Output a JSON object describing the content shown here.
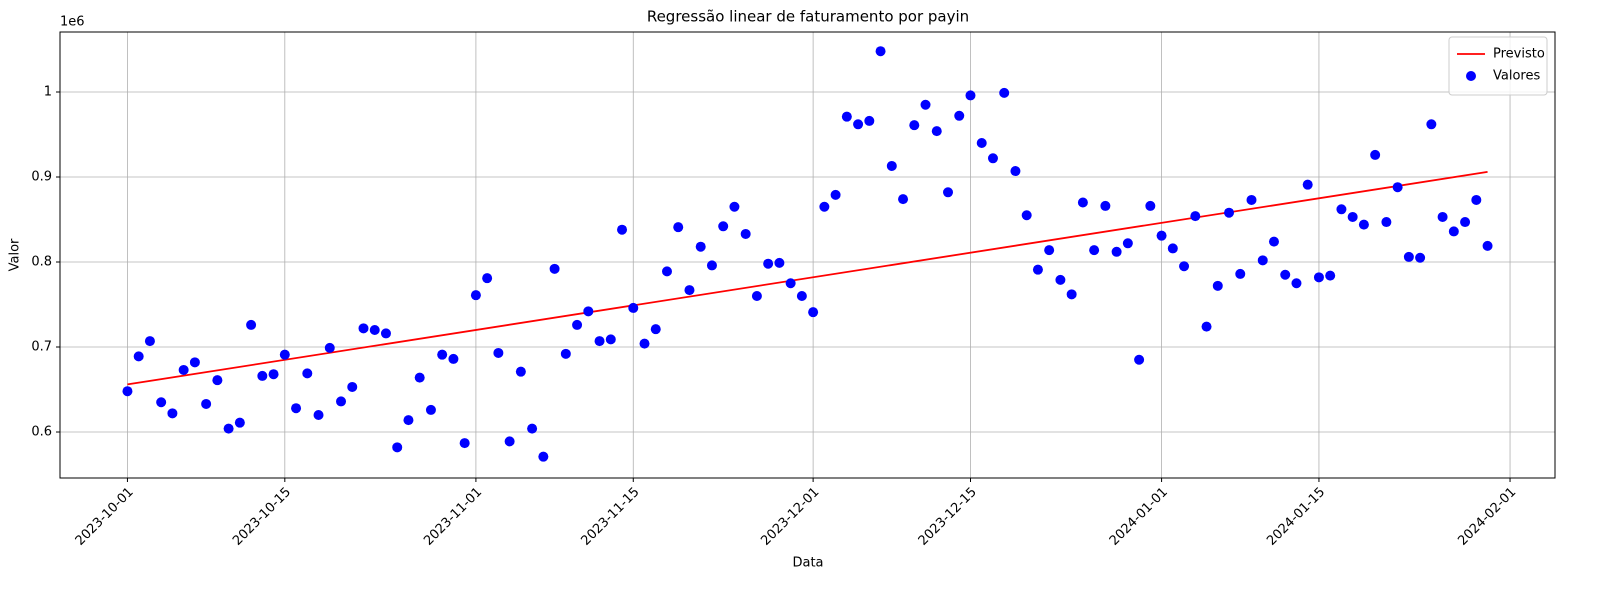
{
  "chart_data": {
    "type": "scatter",
    "title": "Regressão linear de faturamento por payin",
    "x_label": "Data",
    "y_label": "Valor",
    "y_offset_label": "1e6",
    "xlim": [
      "2023-09-25",
      "2024-02-05"
    ],
    "ylim": [
      0.5459,
      1.0706
    ],
    "xticks": [
      "2023-10-01",
      "2023-10-15",
      "2023-11-01",
      "2023-11-15",
      "2023-12-01",
      "2023-12-15",
      "2024-01-01",
      "2024-01-15",
      "2024-02-01"
    ],
    "yticks": [
      0.6,
      0.7,
      0.8,
      0.9,
      1.0
    ],
    "grid": true,
    "legend": "upper right",
    "series": [
      {
        "name": "Previsto",
        "type": "line",
        "color": "red",
        "x": [
          "2023-10-01",
          "2024-01-30"
        ],
        "values": [
          0.656,
          0.906
        ]
      },
      {
        "name": "Valores",
        "type": "scatter",
        "color": "blue",
        "x": [
          "2023-10-01",
          "2023-10-02",
          "2023-10-03",
          "2023-10-04",
          "2023-10-05",
          "2023-10-06",
          "2023-10-07",
          "2023-10-08",
          "2023-10-09",
          "2023-10-10",
          "2023-10-11",
          "2023-10-12",
          "2023-10-13",
          "2023-10-14",
          "2023-10-15",
          "2023-10-16",
          "2023-10-17",
          "2023-10-18",
          "2023-10-19",
          "2023-10-20",
          "2023-10-21",
          "2023-10-22",
          "2023-10-23",
          "2023-10-24",
          "2023-10-25",
          "2023-10-26",
          "2023-10-27",
          "2023-10-28",
          "2023-10-29",
          "2023-10-30",
          "2023-10-31",
          "2023-11-01",
          "2023-11-02",
          "2023-11-03",
          "2023-11-04",
          "2023-11-05",
          "2023-11-06",
          "2023-11-07",
          "2023-11-08",
          "2023-11-09",
          "2023-11-10",
          "2023-11-11",
          "2023-11-12",
          "2023-11-13",
          "2023-11-14",
          "2023-11-15",
          "2023-11-16",
          "2023-11-17",
          "2023-11-18",
          "2023-11-19",
          "2023-11-20",
          "2023-11-21",
          "2023-11-22",
          "2023-11-23",
          "2023-11-24",
          "2023-11-25",
          "2023-11-26",
          "2023-11-27",
          "2023-11-28",
          "2023-11-29",
          "2023-11-30",
          "2023-12-01",
          "2023-12-02",
          "2023-12-03",
          "2023-12-04",
          "2023-12-05",
          "2023-12-06",
          "2023-12-07",
          "2023-12-08",
          "2023-12-09",
          "2023-12-10",
          "2023-12-11",
          "2023-12-12",
          "2023-12-13",
          "2023-12-14",
          "2023-12-15",
          "2023-12-16",
          "2023-12-17",
          "2023-12-18",
          "2023-12-19",
          "2023-12-20",
          "2023-12-21",
          "2023-12-22",
          "2023-12-23",
          "2023-12-24",
          "2023-12-25",
          "2023-12-26",
          "2023-12-27",
          "2023-12-28",
          "2023-12-29",
          "2023-12-30",
          "2023-12-31",
          "2024-01-01",
          "2024-01-02",
          "2024-01-03",
          "2024-01-04",
          "2024-01-05",
          "2024-01-06",
          "2024-01-07",
          "2024-01-08",
          "2024-01-09",
          "2024-01-10",
          "2024-01-11",
          "2024-01-12",
          "2024-01-13",
          "2024-01-14",
          "2024-01-15",
          "2024-01-16",
          "2024-01-17",
          "2024-01-18",
          "2024-01-19",
          "2024-01-20",
          "2024-01-21",
          "2024-01-22",
          "2024-01-23",
          "2024-01-24",
          "2024-01-25",
          "2024-01-26",
          "2024-01-27",
          "2024-01-28",
          "2024-01-29",
          "2024-01-30"
        ],
        "values": [
          0.648,
          0.689,
          0.707,
          0.635,
          0.622,
          0.673,
          0.682,
          0.633,
          0.661,
          0.604,
          0.611,
          0.726,
          0.666,
          0.668,
          0.691,
          0.628,
          0.669,
          0.62,
          0.699,
          0.636,
          0.653,
          0.722,
          0.72,
          0.716,
          0.582,
          0.614,
          0.664,
          0.626,
          0.691,
          0.686,
          0.587,
          0.761,
          0.781,
          0.693,
          0.589,
          0.671,
          0.604,
          0.571,
          0.792,
          0.692,
          0.726,
          0.742,
          0.707,
          0.709,
          0.838,
          0.746,
          0.704,
          0.721,
          0.789,
          0.841,
          0.767,
          0.818,
          0.796,
          0.842,
          0.865,
          0.833,
          0.76,
          0.798,
          0.799,
          0.775,
          0.76,
          0.741,
          0.865,
          0.879,
          0.971,
          0.962,
          0.966,
          1.048,
          0.913,
          0.874,
          0.961,
          0.985,
          0.954,
          0.882,
          0.972,
          0.996,
          0.94,
          0.922,
          0.999,
          0.907,
          0.855,
          0.791,
          0.814,
          0.779,
          0.762,
          0.87,
          0.814,
          0.866,
          0.812,
          0.822,
          0.685,
          0.866,
          0.831,
          0.816,
          0.795,
          0.854,
          0.724,
          0.772,
          0.858,
          0.786,
          0.873,
          0.802,
          0.824,
          0.785,
          0.775,
          0.891,
          0.782,
          0.784,
          0.862,
          0.853,
          0.844,
          0.926,
          0.847,
          0.888,
          0.806,
          0.805,
          0.962,
          0.853,
          0.836,
          0.847,
          0.873,
          0.819
        ]
      }
    ]
  }
}
